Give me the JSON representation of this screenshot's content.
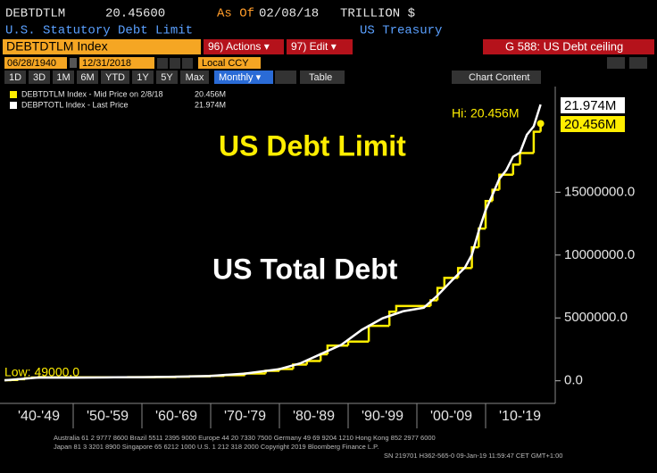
{
  "header": {
    "ticker": "DEBTDTLM",
    "price": "20.45600",
    "as_of_label": "As Of",
    "date": "02/08/18",
    "units": "TRILLION $",
    "description": "U.S. Statutory Debt Limit",
    "source": "US Treasury"
  },
  "toolbar": {
    "security": "DEBTDTLM Index",
    "actions": "96) Actions ▾",
    "edit": "97) Edit ▾",
    "function": "G 588: US Debt ceiling",
    "start_date": "06/28/1940",
    "end_date": "12/31/2018",
    "currency": "Local CCY",
    "periods": [
      "1D",
      "3D",
      "1M",
      "6M",
      "YTD",
      "1Y",
      "5Y",
      "Max"
    ],
    "frequency": "Monthly ▾",
    "table": "Table",
    "chart_content": "Chart Content"
  },
  "chart_data": {
    "type": "line",
    "annotations": {
      "limit_title": "US Debt Limit",
      "debt_title": "US Total Debt",
      "high": "Hi: 20.456M",
      "low": "Low: 49000.0"
    },
    "xlim": [
      1940,
      2020
    ],
    "xticks": [
      {
        "value": 1945,
        "label": "'40-'49"
      },
      {
        "value": 1955,
        "label": "'50-'59"
      },
      {
        "value": 1965,
        "label": "'60-'69"
      },
      {
        "value": 1975,
        "label": "'70-'79"
      },
      {
        "value": 1985,
        "label": "'80-'89"
      },
      {
        "value": 1995,
        "label": "'90-'99"
      },
      {
        "value": 2005,
        "label": "'00-'09"
      },
      {
        "value": 2015,
        "label": "'10-'19"
      }
    ],
    "ylim": [
      -1300000,
      23400000
    ],
    "yticks": [
      {
        "value": 0,
        "label": "0.0"
      },
      {
        "value": 5000000,
        "label": "5000000.0"
      },
      {
        "value": 10000000,
        "label": "10000000.0"
      },
      {
        "value": 15000000,
        "label": "15000000.0"
      }
    ],
    "series": [
      {
        "name": "DEBTDTLM Index - Mid Price on 2/8/18",
        "last_label": "20.456M",
        "color": "#ffee00",
        "step": true,
        "x": [
          1940,
          1941,
          1942,
          1943,
          1944,
          1945,
          1946,
          1954,
          1958,
          1962,
          1965,
          1967,
          1970,
          1972,
          1975,
          1978,
          1980,
          1982,
          1984,
          1986,
          1987,
          1990,
          1993,
          1996,
          1997,
          2002,
          2003,
          2004,
          2006,
          2008,
          2009,
          2010,
          2011,
          2012,
          2014,
          2015,
          2017,
          2018
        ],
        "values": [
          49000,
          65000,
          125000,
          210000,
          260000,
          300000,
          275000,
          281000,
          288000,
          300000,
          324000,
          358000,
          395000,
          450000,
          577000,
          798000,
          935000,
          1290000,
          1573000,
          2111000,
          2800000,
          3122700,
          4370000,
          5500000,
          5950000,
          6400000,
          7384000,
          8184000,
          8965000,
          10615000,
          12104000,
          14294000,
          15194000,
          16394000,
          17200000,
          18113000,
          19809000,
          20456000
        ]
      },
      {
        "name": "DEBPTOTL Index - Last Price",
        "last_label": "21.974M",
        "color": "#ffffff",
        "step": false,
        "x": [
          1940,
          1945,
          1950,
          1955,
          1960,
          1965,
          1970,
          1975,
          1980,
          1983,
          1986,
          1989,
          1992,
          1995,
          1998,
          2001,
          2003,
          2005,
          2007,
          2008,
          2009,
          2010,
          2011,
          2012,
          2013,
          2014,
          2015,
          2016,
          2017,
          2018
        ],
        "values": [
          43000,
          260000,
          257000,
          274000,
          290000,
          322000,
          389000,
          576000,
          930000,
          1380000,
          2120000,
          2860000,
          4060000,
          4970000,
          5530000,
          5810000,
          6780000,
          7930000,
          9010000,
          10020000,
          11910000,
          13560000,
          14790000,
          16070000,
          16740000,
          17820000,
          18150000,
          19570000,
          20240000,
          21974000
        ]
      }
    ]
  },
  "footer": {
    "line1": "Australia 61 2 9777 8600 Brazil 5511 2395 9000 Europe 44 20 7330 7500 Germany 49 69 9204 1210 Hong Kong 852 2977 6000",
    "line2": "Japan 81 3 3201 8900        Singapore 65 6212 1000        U.S. 1 212 318 2000        Copyright 2019 Bloomberg Finance L.P.",
    "line3": "SN 219701 H362-565-0 09-Jan-19 11:59:47 CET  GMT+1:00"
  }
}
